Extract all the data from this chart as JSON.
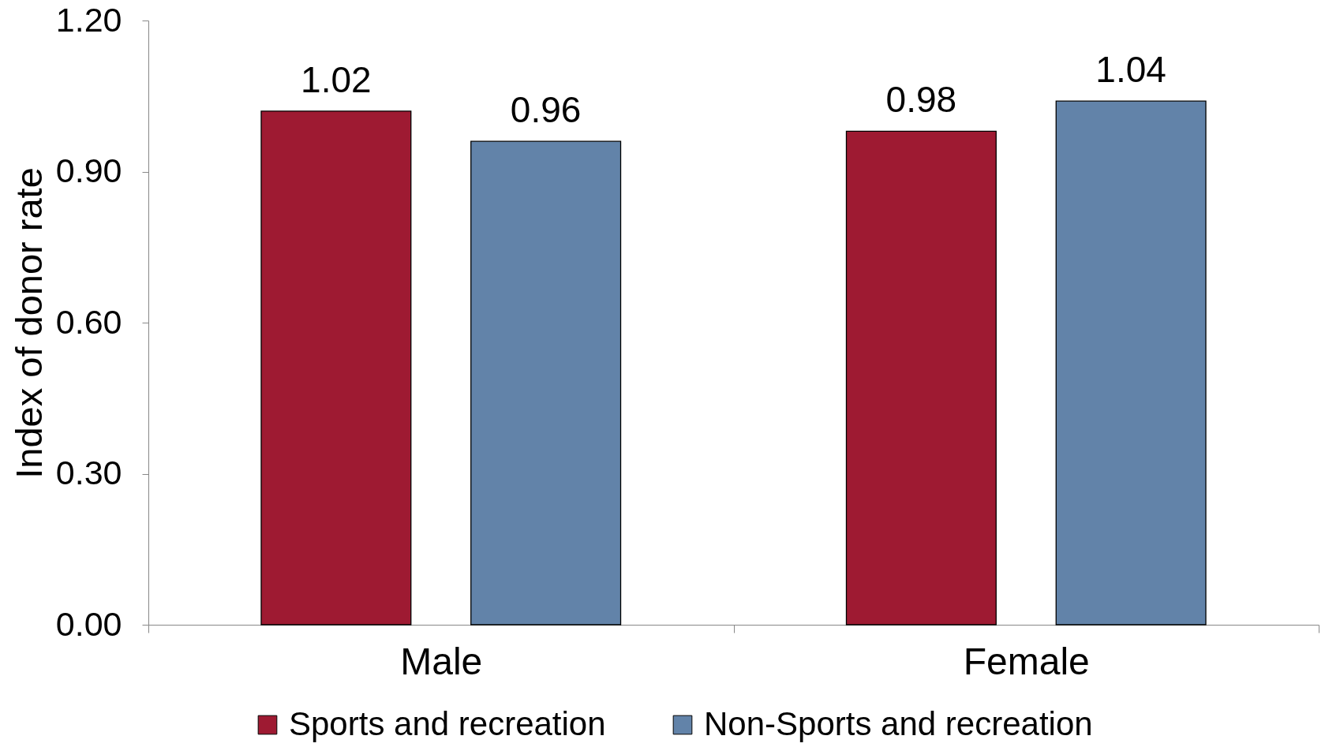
{
  "chart_data": {
    "type": "bar",
    "categories": [
      "Male",
      "Female"
    ],
    "ylabel": "Index of donor rate",
    "series": [
      {
        "name": "Sports and recreation",
        "color": "#9e1a32",
        "values": [
          1.02,
          0.98
        ]
      },
      {
        "name": "Non-Sports and recreation",
        "color": "#6283a9",
        "values": [
          0.96,
          1.04
        ]
      }
    ],
    "ylim": [
      0,
      1.2
    ],
    "yticks": [
      {
        "value": 0,
        "label": "0.00"
      },
      {
        "value": 0.3,
        "label": "0.30"
      },
      {
        "value": 0.6,
        "label": "0.60"
      },
      {
        "value": 0.9,
        "label": "0.90"
      },
      {
        "value": 1.2,
        "label": "1.20"
      }
    ],
    "data_labels": true,
    "legend": "bottom"
  }
}
